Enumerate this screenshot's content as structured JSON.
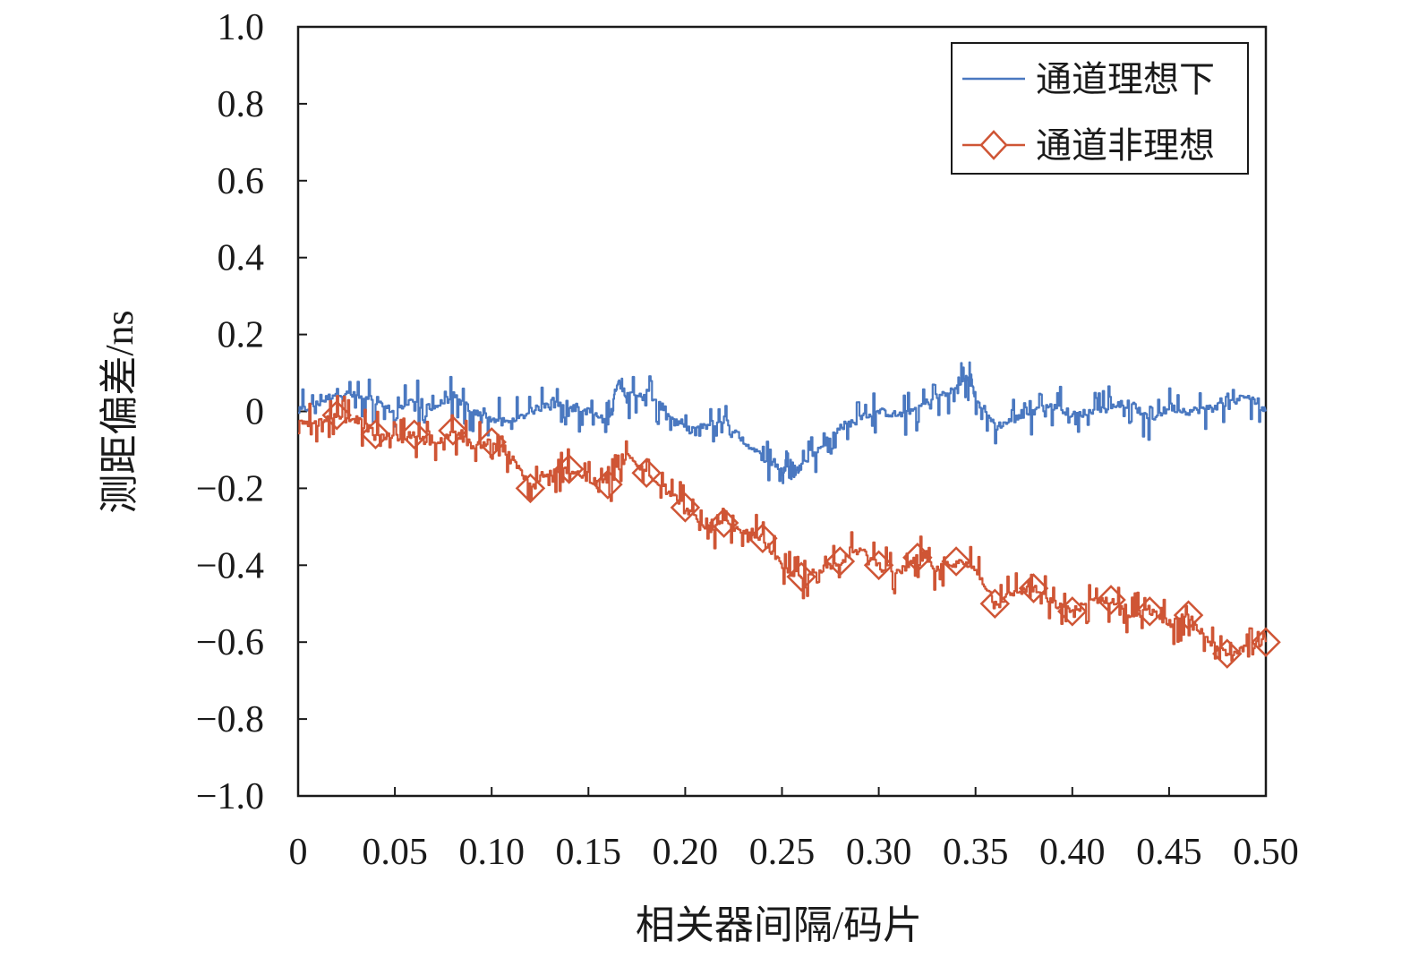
{
  "chart_data": {
    "type": "line",
    "xlabel": "相关器间隔/码片",
    "ylabel": "测距偏差/ns",
    "xlim": [
      0,
      0.5
    ],
    "ylim": [
      -1.0,
      1.0
    ],
    "x_ticks": [
      "0",
      "0.05",
      "0.10",
      "0.15",
      "0.20",
      "0.25",
      "0.30",
      "0.35",
      "0.40",
      "0.45",
      "0.50"
    ],
    "y_ticks": [
      "1.0",
      "0.8",
      "0.6",
      "0.4",
      "0.2",
      "0",
      "−0.2",
      "−0.4",
      "−0.6",
      "−0.8",
      "−1.0"
    ],
    "grid": false,
    "legend_position": "top-right",
    "series": [
      {
        "name": "通道理想下",
        "color": "#4a78c0",
        "marker": "none",
        "x": [
          0,
          0.01,
          0.02,
          0.03,
          0.04,
          0.05,
          0.06,
          0.07,
          0.08,
          0.09,
          0.1,
          0.11,
          0.12,
          0.13,
          0.14,
          0.15,
          0.16,
          0.165,
          0.17,
          0.18,
          0.19,
          0.2,
          0.21,
          0.22,
          0.23,
          0.24,
          0.25,
          0.255,
          0.26,
          0.27,
          0.28,
          0.29,
          0.3,
          0.31,
          0.32,
          0.33,
          0.34,
          0.345,
          0.35,
          0.36,
          0.37,
          0.38,
          0.39,
          0.4,
          0.41,
          0.42,
          0.43,
          0.44,
          0.45,
          0.46,
          0.47,
          0.48,
          0.49,
          0.5
        ],
        "y": [
          0.0,
          0.02,
          0.05,
          0.04,
          0.02,
          0.0,
          0.03,
          0.01,
          0.04,
          0.0,
          -0.02,
          -0.03,
          0.0,
          0.02,
          0.01,
          0.0,
          -0.03,
          0.08,
          0.04,
          0.05,
          0.0,
          -0.05,
          -0.04,
          -0.02,
          -0.08,
          -0.12,
          -0.15,
          -0.17,
          -0.14,
          -0.09,
          -0.04,
          -0.02,
          0.0,
          -0.01,
          0.01,
          0.04,
          0.06,
          0.09,
          0.04,
          -0.04,
          -0.02,
          0.0,
          0.02,
          -0.01,
          0.0,
          0.01,
          0.02,
          -0.02,
          0.01,
          0.0,
          0.01,
          0.02,
          0.04,
          0.0
        ]
      },
      {
        "name": "通道非理想",
        "color": "#cf5535",
        "marker": "diamond",
        "x": [
          0,
          0.01,
          0.02,
          0.03,
          0.04,
          0.05,
          0.06,
          0.07,
          0.08,
          0.09,
          0.1,
          0.11,
          0.12,
          0.13,
          0.14,
          0.15,
          0.16,
          0.17,
          0.18,
          0.19,
          0.2,
          0.21,
          0.22,
          0.23,
          0.24,
          0.25,
          0.26,
          0.27,
          0.28,
          0.29,
          0.3,
          0.31,
          0.32,
          0.33,
          0.34,
          0.35,
          0.36,
          0.37,
          0.38,
          0.39,
          0.4,
          0.41,
          0.42,
          0.43,
          0.44,
          0.45,
          0.46,
          0.47,
          0.48,
          0.49,
          0.5
        ],
        "y": [
          -0.02,
          -0.03,
          -0.01,
          -0.02,
          -0.06,
          -0.07,
          -0.06,
          -0.09,
          -0.05,
          -0.09,
          -0.08,
          -0.12,
          -0.2,
          -0.16,
          -0.15,
          -0.18,
          -0.19,
          -0.12,
          -0.16,
          -0.2,
          -0.25,
          -0.31,
          -0.29,
          -0.32,
          -0.33,
          -0.41,
          -0.43,
          -0.41,
          -0.39,
          -0.36,
          -0.4,
          -0.42,
          -0.38,
          -0.41,
          -0.39,
          -0.41,
          -0.5,
          -0.47,
          -0.46,
          -0.5,
          -0.52,
          -0.49,
          -0.49,
          -0.53,
          -0.52,
          -0.55,
          -0.53,
          -0.6,
          -0.63,
          -0.61,
          -0.6
        ]
      }
    ]
  }
}
